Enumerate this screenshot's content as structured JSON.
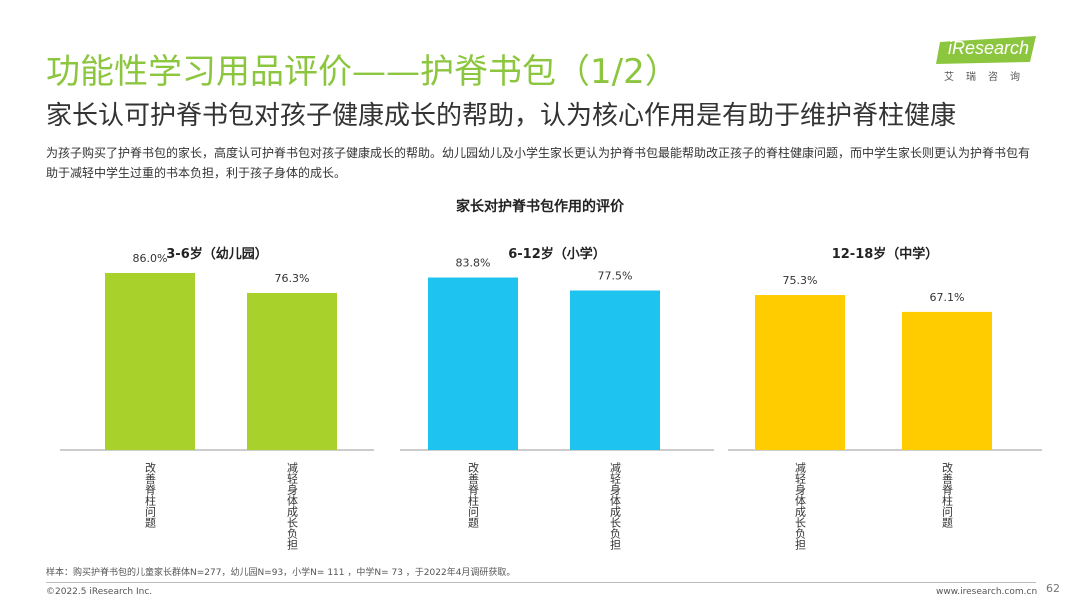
{
  "header": {
    "title": "功能性学习用品评价——护脊书包（1/2）",
    "subtitle": "家长认可护脊书包对孩子健康成长的帮助，认为核心作用是有助于维护脊柱健康",
    "description": "为孩子购买了护脊书包的家长，高度认可护脊书包对孩子健康成长的帮助。幼儿园幼儿及小学生家长更认为护脊书包最能帮助改正孩子的脊柱健康问题，而中学生家长则更认为护脊书包有助于减轻中学生过重的书本负担，利于孩子身体的成长。"
  },
  "logo": {
    "text": "iResearch",
    "sub": "艾瑞咨询",
    "color": "#8cc63f"
  },
  "chart_title": "家长对护脊书包作用的评价",
  "chart_data": [
    {
      "type": "bar",
      "title": "3-6岁（幼儿园）",
      "categories": [
        "改善脊柱问题",
        "减轻身体成长负担"
      ],
      "values": [
        86.0,
        76.3
      ],
      "value_labels": [
        "86.0%",
        "76.3%"
      ],
      "color": "#a8d12b",
      "ylim": [
        0,
        100
      ]
    },
    {
      "type": "bar",
      "title": "6-12岁（小学）",
      "categories": [
        "改善脊柱问题",
        "减轻身体成长负担"
      ],
      "values": [
        83.8,
        77.5
      ],
      "value_labels": [
        "83.8%",
        "77.5%"
      ],
      "color": "#1fc3ef",
      "ylim": [
        0,
        100
      ]
    },
    {
      "type": "bar",
      "title": "12-18岁（中学）",
      "categories": [
        "减轻身体成长负担",
        "改善脊柱问题"
      ],
      "values": [
        75.3,
        67.1
      ],
      "value_labels": [
        "75.3%",
        "67.1%"
      ],
      "color": "#ffcc00",
      "ylim": [
        0,
        100
      ]
    }
  ],
  "footer": {
    "note": "样本：购买护脊书包的儿童家长群体N=277，幼儿园N=93，小学N= 111 ，中学N= 73 ，于2022年4月调研获取。",
    "copyright": "©2022.5 iResearch Inc.",
    "site": "www.iresearch.com.cn",
    "page": "62"
  }
}
